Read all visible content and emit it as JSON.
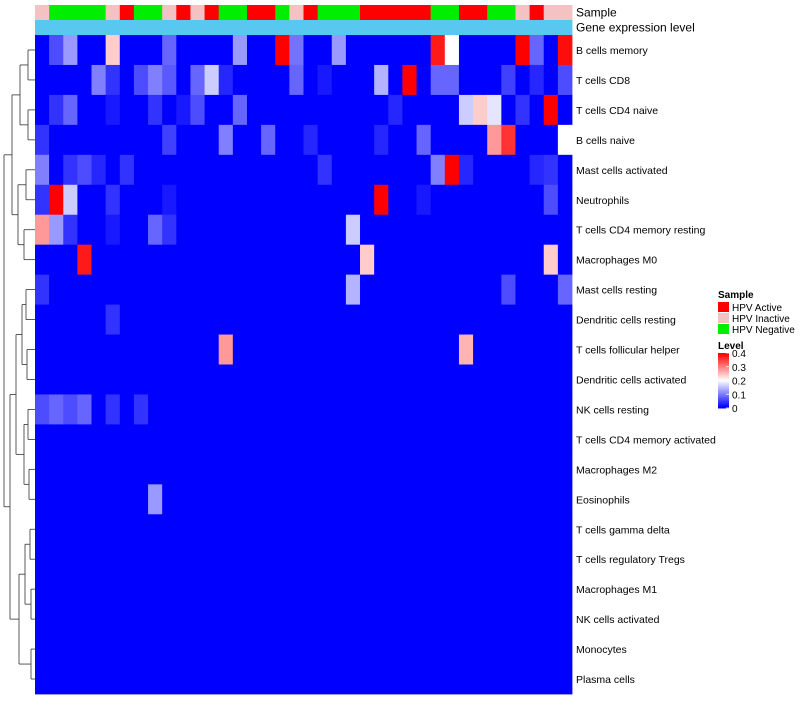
{
  "chart_data": {
    "type": "heatmap",
    "title": "",
    "annotation_tracks": [
      "Sample",
      "Gene expression level"
    ],
    "rows": [
      "B cells memory",
      "T cells CD8",
      "T cells CD4 naive",
      "B cells naive",
      "Mast cells activated",
      "Neutrophils",
      "T cells CD4 memory resting",
      "Macrophages M0",
      "Mast cells resting",
      "Dendritic cells resting",
      "T cells follicular helper",
      "Dendritic cells activated",
      "NK cells resting",
      "T cells CD4 memory activated",
      "Macrophages M2",
      "Eosinophils",
      "T cells gamma delta",
      "T cells regulatory  Tregs",
      "Macrophages M1",
      "NK cells activated",
      "Monocytes",
      "Plasma cells"
    ],
    "sample_groups": [
      "Inactive",
      "Negative",
      "Negative",
      "Negative",
      "Negative",
      "Inactive",
      "Active",
      "Negative",
      "Negative",
      "Inactive",
      "Active",
      "Inactive",
      "Active",
      "Negative",
      "Negative",
      "Active",
      "Active",
      "Negative",
      "Inactive",
      "Active",
      "Negative",
      "Negative",
      "Negative",
      "Active",
      "Active",
      "Active",
      "Active",
      "Active",
      "Negative",
      "Negative",
      "Active",
      "Active",
      "Negative",
      "Negative",
      "Inactive",
      "Active",
      "Inactive",
      "Inactive"
    ],
    "expression_level": [
      0,
      0,
      0,
      0,
      0,
      0,
      0,
      0,
      0,
      0,
      0,
      0,
      0,
      0,
      0,
      0,
      0,
      0,
      0,
      0,
      0,
      0,
      0,
      0,
      0,
      0,
      0,
      0,
      0,
      0,
      0,
      0,
      0,
      0,
      0,
      0,
      0,
      0
    ],
    "values": [
      [
        0.0,
        0.06,
        0.12,
        0.0,
        0.0,
        0.24,
        0.0,
        0.0,
        0.0,
        0.08,
        0.0,
        0.0,
        0.0,
        0.0,
        0.12,
        0.0,
        0.0,
        0.42,
        0.09,
        0.0,
        0.0,
        0.12,
        0.0,
        0.0,
        0.0,
        0.0,
        0.0,
        0.0,
        0.38,
        0.2,
        0.0,
        0.0,
        0.0,
        0.0,
        0.4,
        0.08,
        0.0,
        0.39
      ],
      [
        0.0,
        0.0,
        0.0,
        0.0,
        0.1,
        0.04,
        0.0,
        0.06,
        0.1,
        0.07,
        0.0,
        0.08,
        0.16,
        0.03,
        0.0,
        0.0,
        0.0,
        0.0,
        0.08,
        0.0,
        0.02,
        0.0,
        0.0,
        0.0,
        0.14,
        0.0,
        0.4,
        0.0,
        0.08,
        0.08,
        0.0,
        0.0,
        0.0,
        0.05,
        0.0,
        0.03,
        0.0,
        0.06
      ],
      [
        0.0,
        0.04,
        0.08,
        0.0,
        0.0,
        0.02,
        0.0,
        0.0,
        0.04,
        0.0,
        0.02,
        0.06,
        0.0,
        0.0,
        0.08,
        0.0,
        0.0,
        0.0,
        0.0,
        0.0,
        0.0,
        0.0,
        0.0,
        0.0,
        0.0,
        0.03,
        0.0,
        0.0,
        0.0,
        0.0,
        0.16,
        0.24,
        0.18,
        0.0,
        0.04,
        0.0,
        0.4,
        0.0
      ],
      [
        0.04,
        0.0,
        0.0,
        0.0,
        0.0,
        0.0,
        0.0,
        0.0,
        0.0,
        0.05,
        0.0,
        0.0,
        0.0,
        0.1,
        0.0,
        0.0,
        0.08,
        0.0,
        0.0,
        0.03,
        0.0,
        0.0,
        0.0,
        0.0,
        0.03,
        0.0,
        0.0,
        0.08,
        0.0,
        0.0,
        0.0,
        0.0,
        0.28,
        0.36,
        0.0,
        0.0,
        0.0,
        0.2
      ],
      [
        0.1,
        0.0,
        0.04,
        0.06,
        0.03,
        0.0,
        0.04,
        0.0,
        0.0,
        0.0,
        0.0,
        0.0,
        0.0,
        0.0,
        0.0,
        0.0,
        0.0,
        0.0,
        0.0,
        0.0,
        0.04,
        0.0,
        0.0,
        0.0,
        0.0,
        0.0,
        0.0,
        0.0,
        0.1,
        0.4,
        0.03,
        0.0,
        0.0,
        0.0,
        0.0,
        0.03,
        0.04,
        0.0
      ],
      [
        0.04,
        0.4,
        0.16,
        0.0,
        0.0,
        0.04,
        0.0,
        0.0,
        0.0,
        0.02,
        0.0,
        0.0,
        0.0,
        0.0,
        0.0,
        0.0,
        0.0,
        0.0,
        0.0,
        0.0,
        0.0,
        0.0,
        0.0,
        0.0,
        0.4,
        0.0,
        0.0,
        0.02,
        0.0,
        0.0,
        0.0,
        0.0,
        0.0,
        0.0,
        0.0,
        0.0,
        0.06,
        0.0
      ],
      [
        0.28,
        0.12,
        0.04,
        0.0,
        0.0,
        0.02,
        0.0,
        0.0,
        0.08,
        0.04,
        0.0,
        0.0,
        0.0,
        0.0,
        0.0,
        0.0,
        0.0,
        0.0,
        0.0,
        0.0,
        0.0,
        0.0,
        0.16,
        0.0,
        0.0,
        0.0,
        0.0,
        0.0,
        0.0,
        0.0,
        0.0,
        0.0,
        0.0,
        0.0,
        0.0,
        0.0,
        0.0,
        0.0
      ],
      [
        0.0,
        0.0,
        0.0,
        0.38,
        0.0,
        0.0,
        0.0,
        0.0,
        0.0,
        0.0,
        0.0,
        0.0,
        0.0,
        0.0,
        0.0,
        0.0,
        0.0,
        0.0,
        0.0,
        0.0,
        0.0,
        0.0,
        0.0,
        0.24,
        0.0,
        0.0,
        0.0,
        0.0,
        0.0,
        0.0,
        0.0,
        0.0,
        0.0,
        0.0,
        0.0,
        0.0,
        0.24,
        0.0
      ],
      [
        0.04,
        0.0,
        0.0,
        0.0,
        0.0,
        0.0,
        0.0,
        0.0,
        0.0,
        0.0,
        0.0,
        0.0,
        0.0,
        0.0,
        0.0,
        0.0,
        0.0,
        0.0,
        0.0,
        0.0,
        0.0,
        0.0,
        0.14,
        0.0,
        0.0,
        0.0,
        0.0,
        0.0,
        0.0,
        0.0,
        0.0,
        0.0,
        0.0,
        0.06,
        0.0,
        0.0,
        0.0,
        0.08
      ],
      [
        0.0,
        0.0,
        0.0,
        0.0,
        0.0,
        0.04,
        0.0,
        0.0,
        0.0,
        0.0,
        0.0,
        0.0,
        0.0,
        0.0,
        0.0,
        0.0,
        0.0,
        0.0,
        0.0,
        0.0,
        0.0,
        0.0,
        0.0,
        0.0,
        0.0,
        0.0,
        0.0,
        0.0,
        0.0,
        0.0,
        0.0,
        0.0,
        0.0,
        0.0,
        0.0,
        0.0,
        0.0,
        0.0
      ],
      [
        0.0,
        0.0,
        0.0,
        0.0,
        0.0,
        0.0,
        0.0,
        0.0,
        0.0,
        0.0,
        0.0,
        0.0,
        0.0,
        0.28,
        0.0,
        0.0,
        0.0,
        0.0,
        0.0,
        0.0,
        0.0,
        0.0,
        0.0,
        0.0,
        0.0,
        0.0,
        0.0,
        0.0,
        0.0,
        0.0,
        0.26,
        0.0,
        0.0,
        0.0,
        0.0,
        0.0,
        0.0,
        0.0
      ],
      [
        0.0,
        0.0,
        0.0,
        0.0,
        0.0,
        0.0,
        0.0,
        0.0,
        0.0,
        0.0,
        0.0,
        0.0,
        0.0,
        0.0,
        0.0,
        0.0,
        0.0,
        0.0,
        0.0,
        0.0,
        0.0,
        0.0,
        0.0,
        0.0,
        0.0,
        0.0,
        0.0,
        0.0,
        0.0,
        0.0,
        0.0,
        0.0,
        0.0,
        0.0,
        0.0,
        0.0,
        0.0,
        0.0
      ],
      [
        0.06,
        0.08,
        0.06,
        0.08,
        0.0,
        0.04,
        0.0,
        0.04,
        0.0,
        0.0,
        0.0,
        0.0,
        0.0,
        0.0,
        0.0,
        0.0,
        0.0,
        0.0,
        0.0,
        0.0,
        0.0,
        0.0,
        0.0,
        0.0,
        0.0,
        0.0,
        0.0,
        0.0,
        0.0,
        0.0,
        0.0,
        0.0,
        0.0,
        0.0,
        0.0,
        0.0,
        0.0,
        0.0
      ],
      [
        0.0,
        0.0,
        0.0,
        0.0,
        0.0,
        0.0,
        0.0,
        0.0,
        0.0,
        0.0,
        0.0,
        0.0,
        0.0,
        0.0,
        0.0,
        0.0,
        0.0,
        0.0,
        0.0,
        0.0,
        0.0,
        0.0,
        0.0,
        0.0,
        0.0,
        0.0,
        0.0,
        0.0,
        0.0,
        0.0,
        0.0,
        0.0,
        0.0,
        0.0,
        0.0,
        0.0,
        0.0,
        0.0
      ],
      [
        0.0,
        0.0,
        0.0,
        0.0,
        0.0,
        0.0,
        0.0,
        0.0,
        0.0,
        0.0,
        0.0,
        0.0,
        0.0,
        0.0,
        0.0,
        0.0,
        0.0,
        0.0,
        0.0,
        0.0,
        0.0,
        0.0,
        0.0,
        0.0,
        0.0,
        0.0,
        0.0,
        0.0,
        0.0,
        0.0,
        0.0,
        0.0,
        0.0,
        0.0,
        0.0,
        0.0,
        0.0,
        0.0
      ],
      [
        0.0,
        0.0,
        0.0,
        0.0,
        0.0,
        0.0,
        0.0,
        0.0,
        0.12,
        0.0,
        0.0,
        0.0,
        0.0,
        0.0,
        0.0,
        0.0,
        0.0,
        0.0,
        0.0,
        0.0,
        0.0,
        0.0,
        0.0,
        0.0,
        0.0,
        0.0,
        0.0,
        0.0,
        0.0,
        0.0,
        0.0,
        0.0,
        0.0,
        0.0,
        0.0,
        0.0,
        0.0,
        0.0
      ],
      [
        0.0,
        0.0,
        0.0,
        0.0,
        0.0,
        0.0,
        0.0,
        0.0,
        0.0,
        0.0,
        0.0,
        0.0,
        0.0,
        0.0,
        0.0,
        0.0,
        0.0,
        0.0,
        0.0,
        0.0,
        0.0,
        0.0,
        0.0,
        0.0,
        0.0,
        0.0,
        0.0,
        0.0,
        0.0,
        0.0,
        0.0,
        0.0,
        0.0,
        0.0,
        0.0,
        0.0,
        0.0,
        0.0
      ],
      [
        0.0,
        0.0,
        0.0,
        0.0,
        0.0,
        0.0,
        0.0,
        0.0,
        0.0,
        0.0,
        0.0,
        0.0,
        0.0,
        0.0,
        0.0,
        0.0,
        0.0,
        0.0,
        0.0,
        0.0,
        0.0,
        0.0,
        0.0,
        0.0,
        0.0,
        0.0,
        0.0,
        0.0,
        0.0,
        0.0,
        0.0,
        0.0,
        0.0,
        0.0,
        0.0,
        0.0,
        0.0,
        0.0
      ],
      [
        0.0,
        0.0,
        0.0,
        0.0,
        0.0,
        0.0,
        0.0,
        0.0,
        0.0,
        0.0,
        0.0,
        0.0,
        0.0,
        0.0,
        0.0,
        0.0,
        0.0,
        0.0,
        0.0,
        0.0,
        0.0,
        0.0,
        0.0,
        0.0,
        0.0,
        0.0,
        0.0,
        0.0,
        0.0,
        0.0,
        0.0,
        0.0,
        0.0,
        0.0,
        0.0,
        0.0,
        0.0,
        0.0
      ],
      [
        0.0,
        0.0,
        0.0,
        0.0,
        0.0,
        0.0,
        0.0,
        0.0,
        0.0,
        0.0,
        0.0,
        0.0,
        0.0,
        0.0,
        0.0,
        0.0,
        0.0,
        0.0,
        0.0,
        0.0,
        0.0,
        0.0,
        0.0,
        0.0,
        0.0,
        0.0,
        0.0,
        0.0,
        0.0,
        0.0,
        0.0,
        0.0,
        0.0,
        0.0,
        0.0,
        0.0,
        0.0,
        0.0
      ],
      [
        0.0,
        0.0,
        0.0,
        0.0,
        0.0,
        0.0,
        0.0,
        0.0,
        0.0,
        0.0,
        0.0,
        0.0,
        0.0,
        0.0,
        0.0,
        0.0,
        0.0,
        0.0,
        0.0,
        0.0,
        0.0,
        0.0,
        0.0,
        0.0,
        0.0,
        0.0,
        0.0,
        0.0,
        0.0,
        0.0,
        0.0,
        0.0,
        0.0,
        0.0,
        0.0,
        0.0,
        0.0,
        0.0
      ],
      [
        0.0,
        0.0,
        0.0,
        0.0,
        0.0,
        0.0,
        0.0,
        0.0,
        0.0,
        0.0,
        0.0,
        0.0,
        0.0,
        0.0,
        0.0,
        0.0,
        0.0,
        0.0,
        0.0,
        0.0,
        0.0,
        0.0,
        0.0,
        0.0,
        0.0,
        0.0,
        0.0,
        0.0,
        0.0,
        0.0,
        0.0,
        0.0,
        0.0,
        0.0,
        0.0,
        0.0,
        0.0,
        0.0
      ]
    ],
    "legend_position": "right",
    "sample_legend": {
      "title": "Sample",
      "entries": [
        {
          "group": "Active",
          "label": "HPV Active",
          "color": "#ff0000"
        },
        {
          "group": "Inactive",
          "label": "HPV Inactive",
          "color": "#f4c2c2"
        },
        {
          "group": "Negative",
          "label": "HPV Negative",
          "color": "#00ee00"
        }
      ]
    },
    "level_legend": {
      "title": "Level",
      "min": 0,
      "max": 0.4,
      "ticks": [
        0.4,
        0.3,
        0.2,
        0.1,
        0
      ],
      "tick_labels": [
        "0.4",
        "0.3",
        "0.2",
        "0.1",
        "0"
      ]
    },
    "colors": {
      "low": "#0000ff",
      "mid": "#ffffff",
      "high": "#ff0000",
      "expression_track": "#58c8f0"
    }
  }
}
